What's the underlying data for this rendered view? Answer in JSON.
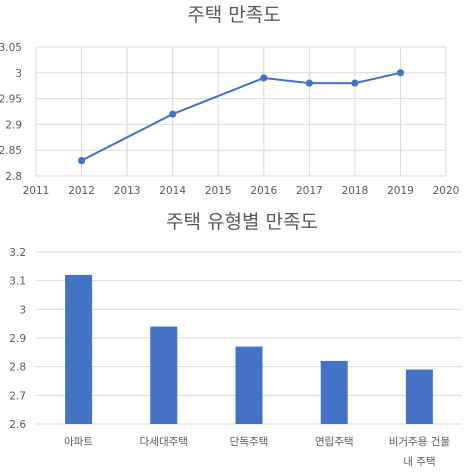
{
  "chart_data": [
    {
      "type": "line",
      "title": "주택 만족도",
      "x": [
        2012,
        2014,
        2016,
        2017,
        2018,
        2019
      ],
      "series": [
        {
          "values": [
            2.83,
            2.92,
            2.99,
            2.98,
            2.98,
            3.0
          ]
        }
      ],
      "xlim": [
        2011,
        2020
      ],
      "ylim": [
        2.8,
        3.05
      ],
      "x_ticks": [
        "2011",
        "2012",
        "2013",
        "2014",
        "2015",
        "2016",
        "2017",
        "2018",
        "2019",
        "2020"
      ],
      "y_ticks": [
        "2.8",
        "2.85",
        "2.9",
        "2.95",
        "3",
        "3.05"
      ],
      "grid": true,
      "color": "#4472c4"
    },
    {
      "type": "bar",
      "title": "주택 유형별 만족도",
      "categories": [
        "아파트",
        "다세대주택",
        "단독주택",
        "연립주택",
        "비거주용 건물 내 주택"
      ],
      "category_lines": [
        [
          "아파트"
        ],
        [
          "다세대주택"
        ],
        [
          "단독주택"
        ],
        [
          "연립주택"
        ],
        [
          "비거주용 건물",
          "내 주택"
        ]
      ],
      "values": [
        3.12,
        2.94,
        2.87,
        2.82,
        2.79
      ],
      "ylim": [
        2.6,
        3.2
      ],
      "y_ticks": [
        "2.6",
        "2.7",
        "2.8",
        "2.9",
        "3",
        "3.1",
        "3.2"
      ],
      "grid": true,
      "color": "#4472c4"
    }
  ]
}
